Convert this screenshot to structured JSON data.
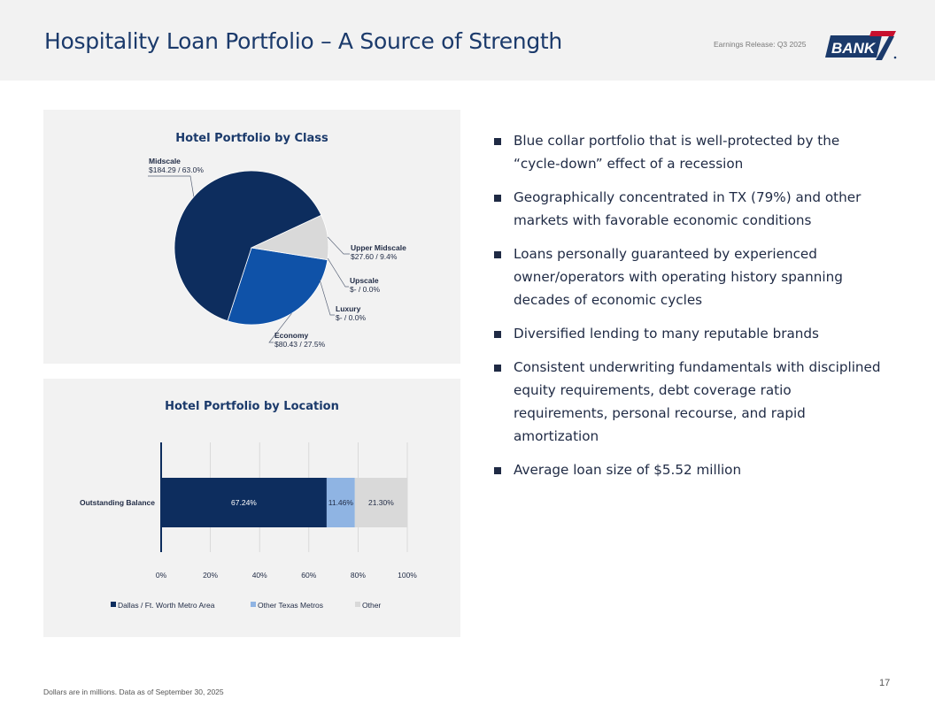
{
  "header": {
    "title": "Hospitality Loan Portfolio – A Source of Strength",
    "release": "Earnings Release: Q3 2025",
    "logo_text": "BANK",
    "logo_number": "7",
    "brand_color": "#1b3a6b",
    "accent_color": "#c8102e"
  },
  "bullets": [
    "Blue collar portfolio that is well-protected by the “cycle-down” effect of a recession",
    "Geographically concentrated in TX (79%) and other markets with favorable economic conditions",
    "Loans personally guaranteed by experienced owner/operators with operating history spanning decades of economic cycles",
    "Diversified lending to many reputable brands",
    "Consistent underwriting fundamentals with disciplined equity requirements, debt coverage ratio requirements, personal recourse, and rapid amortization",
    "Average loan size of $5.52 million"
  ],
  "footer": {
    "note": "Dollars are in millions. Data as of September 30, 2025",
    "page": "17"
  },
  "chart_data": [
    {
      "type": "pie",
      "title": "Hotel Portfolio by Class",
      "slices": [
        {
          "name": "Midscale",
          "value": 184.29,
          "percent": 63.0,
          "value_label": "$184.29",
          "percent_label": "/ 63.0%",
          "color": "#0d2d5e"
        },
        {
          "name": "Upper Midscale",
          "value": 27.6,
          "percent": 9.4,
          "value_label": "$27.60",
          "percent_label": "/ 9.4%",
          "color": "#d9d9d9"
        },
        {
          "name": "Upscale",
          "value": 0,
          "percent": 0.0,
          "value_label": "$-",
          "percent_label": "/ 0.0%",
          "color": "#8fb4e3"
        },
        {
          "name": "Luxury",
          "value": 0,
          "percent": 0.0,
          "value_label": "$-",
          "percent_label": "/ 0.0%",
          "color": "#4a4a4a"
        },
        {
          "name": "Economy",
          "value": 80.43,
          "percent": 27.5,
          "value_label": "$80.43",
          "percent_label": "/ 27.5%",
          "color": "#0f52a8"
        }
      ]
    },
    {
      "type": "bar",
      "orientation": "horizontal-stacked-100",
      "title": "Hotel Portfolio by Location",
      "categories": [
        "Outstanding Balance"
      ],
      "series": [
        {
          "name": "Dallas / Ft. Worth Metro Area",
          "values": [
            67.24
          ],
          "label": "67.24%",
          "color": "#0d2d5e"
        },
        {
          "name": "Other Texas Metros",
          "values": [
            11.46
          ],
          "label": "11.46%",
          "color": "#8fb4e3"
        },
        {
          "name": "Other",
          "values": [
            21.3
          ],
          "label": "21.30%",
          "color": "#d9d9d9"
        }
      ],
      "x_ticks": [
        "0%",
        "20%",
        "40%",
        "60%",
        "80%",
        "100%"
      ],
      "xlim": [
        0,
        100
      ],
      "legend": "bottom"
    }
  ]
}
